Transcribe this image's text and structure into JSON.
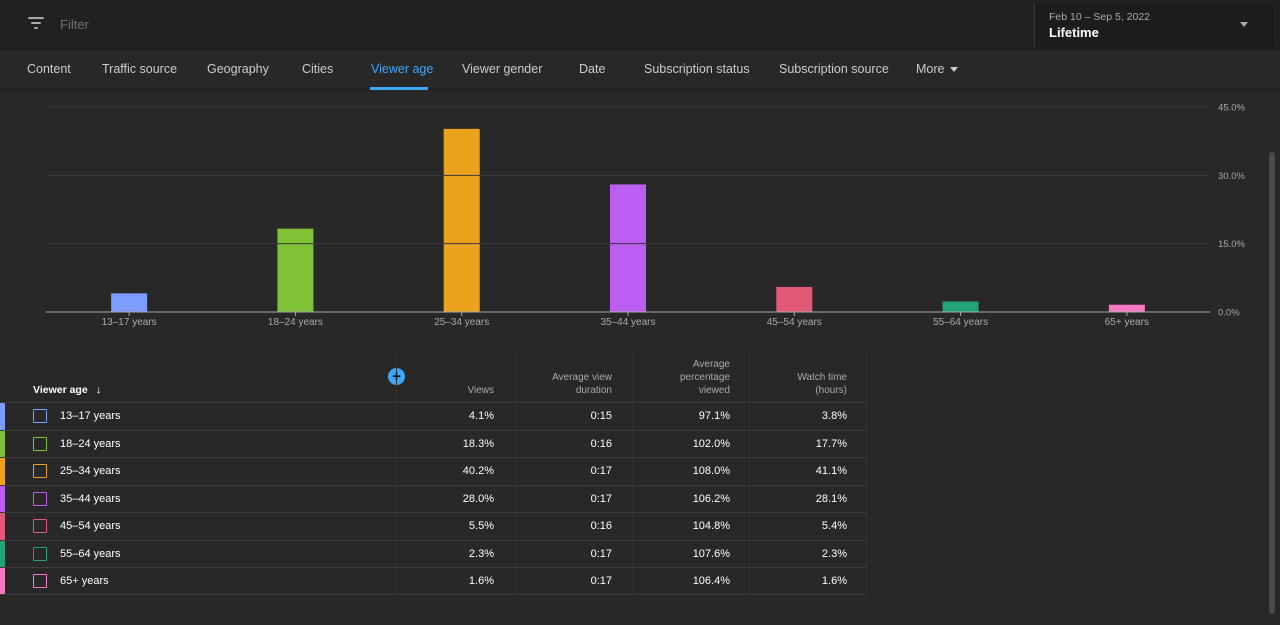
{
  "filter": {
    "placeholder": "Filter"
  },
  "date_picker": {
    "range": "Feb 10 – Sep 5, 2022",
    "label": "Lifetime"
  },
  "tabs": [
    {
      "label": "Content",
      "active": false
    },
    {
      "label": "Traffic source",
      "active": false
    },
    {
      "label": "Geography",
      "active": false
    },
    {
      "label": "Cities",
      "active": false
    },
    {
      "label": "Viewer age",
      "active": true
    },
    {
      "label": "Viewer gender",
      "active": false
    },
    {
      "label": "Date",
      "active": false
    },
    {
      "label": "Subscription status",
      "active": false
    },
    {
      "label": "Subscription source",
      "active": false
    },
    {
      "label": "More",
      "active": false
    }
  ],
  "chart_data": {
    "type": "bar",
    "categories": [
      "13–17 years",
      "18–24 years",
      "25–34 years",
      "35–44 years",
      "45–54 years",
      "55–64 years",
      "65+ years"
    ],
    "values": [
      4.1,
      18.3,
      40.2,
      28.0,
      5.5,
      2.3,
      1.6
    ],
    "colors": [
      "#7c9cff",
      "#7fc236",
      "#eba21d",
      "#bd5ef3",
      "#e25877",
      "#21a375",
      "#f879c0"
    ],
    "ylim": [
      0,
      45
    ],
    "yticks": [
      "0.0%",
      "15.0%",
      "30.0%",
      "45.0%"
    ],
    "grid": true
  },
  "table": {
    "headers": {
      "viewer_age": "Viewer age",
      "views": "Views",
      "avg_view_duration_1": "Average view",
      "avg_view_duration_2": "duration",
      "avg_pct_1": "Average",
      "avg_pct_2": "percentage",
      "avg_pct_3": "viewed",
      "watch_time_1": "Watch time",
      "watch_time_2": "(hours)"
    },
    "rows": [
      {
        "label": "13–17 years",
        "views": "4.1%",
        "avg_dur": "0:15",
        "avg_pct": "97.1%",
        "watch": "3.8%",
        "color": "#7c9cff"
      },
      {
        "label": "18–24 years",
        "views": "18.3%",
        "avg_dur": "0:16",
        "avg_pct": "102.0%",
        "watch": "17.7%",
        "color": "#7fc236"
      },
      {
        "label": "25–34 years",
        "views": "40.2%",
        "avg_dur": "0:17",
        "avg_pct": "108.0%",
        "watch": "41.1%",
        "color": "#eba21d"
      },
      {
        "label": "35–44 years",
        "views": "28.0%",
        "avg_dur": "0:17",
        "avg_pct": "106.2%",
        "watch": "28.1%",
        "color": "#bd5ef3"
      },
      {
        "label": "45–54 years",
        "views": "5.5%",
        "avg_dur": "0:16",
        "avg_pct": "104.8%",
        "watch": "5.4%",
        "color": "#e25877"
      },
      {
        "label": "55–64 years",
        "views": "2.3%",
        "avg_dur": "0:17",
        "avg_pct": "107.6%",
        "watch": "2.3%",
        "color": "#21a375"
      },
      {
        "label": "65+ years",
        "views": "1.6%",
        "avg_dur": "0:17",
        "avg_pct": "106.4%",
        "watch": "1.6%",
        "color": "#f879c0"
      }
    ]
  }
}
